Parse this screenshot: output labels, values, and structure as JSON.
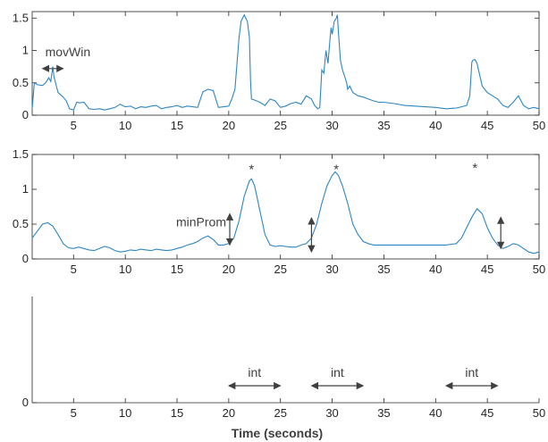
{
  "chart_data": [
    {
      "type": "line",
      "xlim": [
        1,
        50
      ],
      "ylim": [
        0,
        1.6
      ],
      "xticks": [
        "5",
        "10",
        "15",
        "20",
        "25",
        "30",
        "35",
        "40",
        "45",
        "50"
      ],
      "yticks": [
        "0",
        "0.5",
        "1",
        "1.5"
      ],
      "color": "#2e86c1",
      "series": [
        {
          "x": [
            1,
            1.2,
            1.3,
            1.5,
            2,
            2.3,
            2.5,
            2.6,
            2.8,
            3,
            3.1,
            3.5,
            4,
            4.3,
            4.6,
            5,
            5.3,
            5.6,
            6,
            6.5,
            7,
            7.5,
            8,
            8.5,
            9,
            9.5,
            10,
            10.5,
            11,
            11.5,
            12,
            12.5,
            13,
            13.5,
            14,
            14.5,
            15,
            15.5,
            16,
            16.5,
            17,
            17.5,
            18,
            18.5,
            19,
            19.5,
            20,
            20.3,
            20.6,
            21,
            21.2,
            21.5,
            21.8,
            22,
            22.1,
            22.2,
            22.4,
            22.7,
            23,
            23.5,
            24,
            24.5,
            25,
            25.5,
            26,
            26.5,
            27,
            27.5,
            28,
            28.3,
            28.6,
            28.8,
            29,
            29.2,
            29.4,
            29.6,
            29.8,
            29.9,
            30,
            30.2,
            30.4,
            30.5,
            30.6,
            30.8,
            31,
            31.2,
            31.4,
            31.5,
            31.7,
            32,
            32.5,
            33,
            33.5,
            34,
            34.5,
            35,
            36,
            37,
            38,
            39,
            40,
            41,
            42,
            42.5,
            43,
            43.3,
            43.5,
            43.6,
            43.8,
            44,
            44.5,
            45,
            45.5,
            46,
            46.5,
            47,
            47.5,
            48,
            48.5,
            49,
            49.5,
            50
          ],
          "y": [
            0.1,
            0.48,
            0.5,
            0.47,
            0.46,
            0.5,
            0.55,
            0.58,
            0.52,
            0.75,
            0.6,
            0.35,
            0.28,
            0.22,
            0.1,
            0.08,
            0.2,
            0.19,
            0.2,
            0.1,
            0.09,
            0.1,
            0.08,
            0.1,
            0.12,
            0.17,
            0.13,
            0.14,
            0.1,
            0.13,
            0.12,
            0.14,
            0.15,
            0.1,
            0.12,
            0.13,
            0.15,
            0.12,
            0.14,
            0.13,
            0.12,
            0.36,
            0.4,
            0.38,
            0.12,
            0.13,
            0.14,
            0.25,
            0.4,
            1.2,
            1.45,
            1.55,
            1.45,
            1.2,
            0.55,
            0.25,
            0.24,
            0.22,
            0.2,
            0.15,
            0.25,
            0.22,
            0.12,
            0.14,
            0.18,
            0.2,
            0.17,
            0.3,
            0.25,
            0.15,
            0.1,
            0.12,
            0.7,
            0.65,
            1.0,
            0.8,
            1.2,
            1.35,
            1.25,
            1.45,
            1.5,
            1.55,
            1.3,
            0.85,
            0.7,
            0.6,
            0.5,
            0.4,
            0.45,
            0.35,
            0.3,
            0.28,
            0.25,
            0.22,
            0.2,
            0.2,
            0.18,
            0.15,
            0.14,
            0.13,
            0.12,
            0.1,
            0.11,
            0.13,
            0.15,
            0.3,
            0.82,
            0.85,
            0.86,
            0.8,
            0.45,
            0.35,
            0.3,
            0.25,
            0.15,
            0.12,
            0.2,
            0.3,
            0.15,
            0.1,
            0.12,
            0.1
          ]
        }
      ]
    },
    {
      "type": "line",
      "xlim": [
        1,
        50
      ],
      "ylim": [
        0,
        1.5
      ],
      "xticks": [
        "5",
        "10",
        "15",
        "20",
        "25",
        "30",
        "35",
        "40",
        "45",
        "50"
      ],
      "yticks": [
        "0",
        "0.5",
        "1",
        "1.5"
      ],
      "color": "#2e86c1",
      "series": [
        {
          "x": [
            1,
            1.5,
            2,
            2.5,
            3,
            3.5,
            4,
            4.5,
            5,
            5.5,
            6,
            6.5,
            7,
            7.5,
            8,
            8.5,
            9,
            9.5,
            10,
            10.5,
            11,
            11.5,
            12,
            12.5,
            13,
            13.5,
            14,
            14.5,
            15,
            15.5,
            16,
            16.5,
            17,
            17.5,
            18,
            18.5,
            19,
            19.5,
            20,
            20.5,
            21,
            21.5,
            22,
            22.2,
            22.5,
            23,
            23.5,
            24,
            24.5,
            25,
            25.5,
            26,
            26.5,
            27,
            27.5,
            28,
            28.5,
            29,
            29.5,
            30,
            30.3,
            30.6,
            31,
            31.5,
            32,
            32.5,
            33,
            33.5,
            34,
            34.5,
            35,
            36,
            37,
            38,
            39,
            40,
            41,
            42,
            42.5,
            43,
            43.5,
            44,
            44.5,
            45,
            45.5,
            46,
            46.5,
            47,
            47.5,
            48,
            48.5,
            49,
            49.5,
            50
          ],
          "y": [
            0.3,
            0.4,
            0.5,
            0.52,
            0.47,
            0.35,
            0.22,
            0.16,
            0.15,
            0.17,
            0.15,
            0.13,
            0.12,
            0.15,
            0.18,
            0.16,
            0.12,
            0.1,
            0.11,
            0.13,
            0.12,
            0.14,
            0.13,
            0.12,
            0.14,
            0.13,
            0.12,
            0.13,
            0.15,
            0.17,
            0.2,
            0.22,
            0.25,
            0.3,
            0.33,
            0.28,
            0.2,
            0.2,
            0.22,
            0.3,
            0.55,
            0.9,
            1.12,
            1.15,
            1.05,
            0.7,
            0.35,
            0.2,
            0.18,
            0.19,
            0.18,
            0.17,
            0.17,
            0.2,
            0.22,
            0.3,
            0.5,
            0.8,
            1.05,
            1.2,
            1.25,
            1.2,
            1.05,
            0.8,
            0.5,
            0.35,
            0.25,
            0.22,
            0.2,
            0.2,
            0.2,
            0.2,
            0.2,
            0.2,
            0.2,
            0.2,
            0.2,
            0.22,
            0.3,
            0.45,
            0.6,
            0.72,
            0.65,
            0.45,
            0.3,
            0.2,
            0.15,
            0.18,
            0.22,
            0.2,
            0.15,
            0.1,
            0.08,
            0.1
          ]
        }
      ],
      "annotations": {
        "min_prom_label": "minProm",
        "star": "*",
        "peaks_x": [
          22.2,
          30.4,
          43.8
        ],
        "star_y": [
          1.3,
          1.3,
          1.32
        ],
        "prominence_arrows": [
          {
            "x": 20.1,
            "y1": 0.2,
            "y2": 0.65
          },
          {
            "x": 28.0,
            "y1": 0.1,
            "y2": 0.59
          },
          {
            "x": 46.3,
            "y1": 0.15,
            "y2": 0.6
          }
        ]
      }
    },
    {
      "type": "line",
      "xlim": [
        1,
        50
      ],
      "ylim": [
        0,
        1.5
      ],
      "xticks": [
        "5",
        "10",
        "15",
        "20",
        "25",
        "30",
        "35",
        "40",
        "45",
        "50"
      ],
      "yticks": [
        "0"
      ],
      "xlabel": "Time (seconds)",
      "annotations": {
        "int_label": "int",
        "windows": [
          {
            "x1": 20.0,
            "x2": 25.0
          },
          {
            "x1": 28.0,
            "x2": 33.0
          },
          {
            "x1": 41.0,
            "x2": 46.0
          }
        ]
      }
    }
  ],
  "annotations_top": {
    "mov_win_label": "movWin",
    "mov_win_x1": 2.0,
    "mov_win_x2": 4.0,
    "mov_win_y": 0.72
  }
}
